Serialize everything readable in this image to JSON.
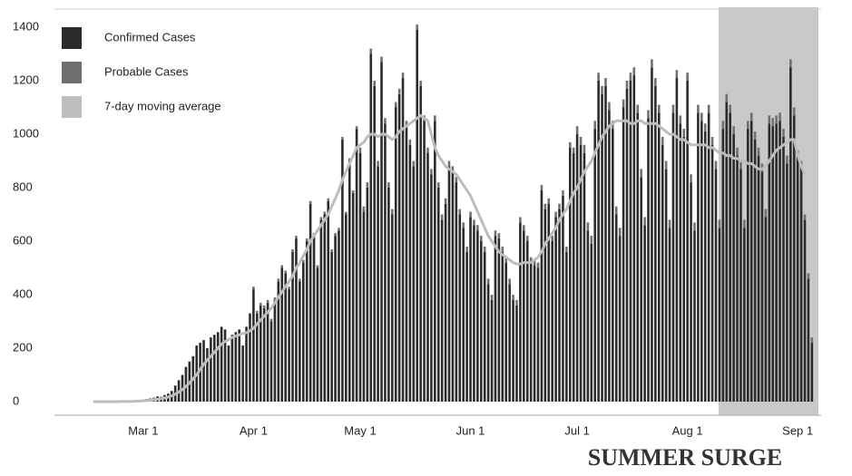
{
  "chart_data": {
    "type": "bar",
    "stacked": true,
    "annotation": "SUMMER SURGE",
    "ylim": [
      0,
      1400
    ],
    "yticks": [
      0,
      200,
      400,
      600,
      800,
      1000,
      1200,
      1400
    ],
    "grid": false,
    "legend": "upper left",
    "categories": [
      null,
      null,
      null,
      null,
      null,
      null,
      null,
      null,
      null,
      null,
      null,
      null,
      null,
      null,
      "Mar 1",
      null,
      null,
      null,
      null,
      null,
      null,
      null,
      null,
      null,
      null,
      null,
      null,
      null,
      null,
      null,
      null,
      null,
      null,
      null,
      null,
      null,
      null,
      null,
      null,
      null,
      null,
      null,
      null,
      null,
      null,
      "Apr 1",
      null,
      null,
      null,
      null,
      null,
      null,
      null,
      null,
      null,
      null,
      null,
      null,
      null,
      null,
      null,
      null,
      null,
      null,
      null,
      null,
      null,
      null,
      null,
      null,
      null,
      null,
      null,
      null,
      null,
      "May 1",
      null,
      null,
      null,
      null,
      null,
      null,
      null,
      null,
      null,
      null,
      null,
      null,
      null,
      null,
      null,
      null,
      null,
      null,
      null,
      null,
      null,
      null,
      null,
      null,
      null,
      null,
      null,
      null,
      null,
      null,
      "Jun 1",
      null,
      null,
      null,
      null,
      null,
      null,
      null,
      null,
      null,
      null,
      null,
      null,
      null,
      null,
      null,
      null,
      null,
      null,
      null,
      null,
      null,
      null,
      null,
      null,
      null,
      null,
      null,
      null,
      null,
      "Jul 1",
      null,
      null,
      null,
      null,
      null,
      null,
      null,
      null,
      null,
      null,
      null,
      null,
      null,
      null,
      null,
      null,
      null,
      null,
      null,
      null,
      null,
      null,
      null,
      null,
      null,
      null,
      null,
      null,
      null,
      null,
      "Aug 1",
      null,
      null,
      null,
      null,
      null,
      null,
      null,
      null,
      null,
      null,
      null,
      null,
      null,
      null,
      null,
      null,
      null,
      null,
      null,
      null,
      null,
      null,
      null,
      null,
      null,
      null,
      null,
      null,
      null,
      null,
      "Sep 1",
      null,
      null,
      null,
      null
    ],
    "series": [
      {
        "name": "Confirmed Cases",
        "color": "#2b2b2b",
        "values": [
          0,
          0,
          0,
          0,
          0,
          0,
          2,
          0,
          0,
          3,
          0,
          0,
          5,
          4,
          8,
          10,
          12,
          15,
          20,
          18,
          25,
          30,
          40,
          60,
          80,
          100,
          130,
          150,
          170,
          210,
          220,
          230,
          200,
          240,
          250,
          260,
          280,
          270,
          210,
          250,
          260,
          270,
          210,
          280,
          330,
          420,
          330,
          360,
          350,
          370,
          300,
          380,
          450,
          500,
          480,
          420,
          560,
          610,
          450,
          520,
          600,
          740,
          620,
          500,
          680,
          700,
          750,
          560,
          620,
          640,
          980,
          700,
          900,
          780,
          1020,
          930,
          710,
          800,
          1300,
          1180,
          880,
          1270,
          1040,
          800,
          700,
          1100,
          1150,
          1210,
          1030,
          960,
          880,
          1390,
          1180,
          1050,
          930,
          850,
          1050,
          800,
          680,
          740,
          880,
          860,
          820,
          700,
          650,
          560,
          690,
          660,
          640,
          600,
          560,
          440,
          380,
          620,
          610,
          560,
          520,
          440,
          380,
          360,
          670,
          640,
          600,
          520,
          510,
          500,
          790,
          720,
          740,
          600,
          690,
          720,
          770,
          560,
          950,
          930,
          1000,
          960,
          930,
          640,
          590,
          1020,
          1200,
          1150,
          1180,
          1090,
          1020,
          700,
          620,
          1100,
          1170,
          1200,
          1220,
          1080,
          840,
          660,
          1060,
          1250,
          1180,
          1080,
          960,
          870,
          650,
          1080,
          1210,
          1040,
          990,
          1200,
          820,
          640,
          1080,
          1050,
          1010,
          1080,
          960,
          870,
          650,
          1020,
          1120,
          1080,
          1000,
          920,
          870,
          650,
          1020,
          1050,
          980,
          920,
          860,
          690,
          1040,
          1030,
          1040,
          1050,
          990,
          890,
          1250,
          1070,
          920,
          880,
          680,
          460,
          220
        ]
      },
      {
        "name": "Probable Cases",
        "color": "#707070",
        "values": [
          0,
          0,
          0,
          0,
          0,
          0,
          0,
          0,
          0,
          0,
          0,
          0,
          0,
          0,
          0,
          0,
          0,
          0,
          0,
          0,
          0,
          0,
          0,
          0,
          0,
          0,
          0,
          0,
          0,
          0,
          0,
          0,
          0,
          0,
          0,
          0,
          0,
          0,
          0,
          0,
          0,
          0,
          0,
          0,
          0,
          10,
          10,
          10,
          10,
          10,
          10,
          10,
          10,
          10,
          10,
          10,
          10,
          10,
          10,
          10,
          10,
          10,
          10,
          10,
          10,
          10,
          10,
          10,
          10,
          10,
          10,
          10,
          10,
          10,
          10,
          20,
          20,
          20,
          20,
          20,
          20,
          20,
          20,
          20,
          20,
          20,
          20,
          20,
          20,
          20,
          20,
          20,
          20,
          20,
          20,
          20,
          20,
          20,
          20,
          20,
          20,
          20,
          20,
          20,
          20,
          20,
          20,
          20,
          20,
          20,
          20,
          20,
          20,
          20,
          20,
          20,
          20,
          20,
          20,
          20,
          20,
          20,
          20,
          20,
          20,
          20,
          20,
          20,
          20,
          20,
          20,
          20,
          20,
          20,
          20,
          20,
          30,
          30,
          30,
          30,
          30,
          30,
          30,
          30,
          30,
          30,
          30,
          30,
          30,
          30,
          30,
          30,
          30,
          30,
          30,
          30,
          30,
          30,
          30,
          30,
          30,
          30,
          30,
          30,
          30,
          30,
          30,
          30,
          30,
          30,
          30,
          30,
          30,
          30,
          30,
          30,
          30,
          30,
          30,
          30,
          30,
          30,
          30,
          30,
          30,
          30,
          30,
          30,
          30,
          30,
          30,
          30,
          30,
          30,
          30,
          30,
          30,
          30,
          20,
          20,
          20,
          20,
          20
        ]
      },
      {
        "name": "7-day moving average",
        "color": "#bdbdbd",
        "type": "line",
        "values": [
          0,
          0,
          0,
          0,
          0,
          0,
          0,
          0,
          1,
          1,
          1,
          1,
          2,
          2,
          3,
          4,
          5,
          7,
          9,
          11,
          14,
          17,
          22,
          28,
          36,
          45,
          57,
          70,
          85,
          100,
          120,
          140,
          155,
          170,
          185,
          200,
          215,
          225,
          232,
          240,
          245,
          250,
          255,
          258,
          265,
          275,
          290,
          305,
          320,
          335,
          350,
          370,
          390,
          410,
          430,
          450,
          470,
          500,
          520,
          545,
          570,
          600,
          620,
          640,
          660,
          680,
          700,
          730,
          760,
          790,
          830,
          860,
          890,
          920,
          950,
          960,
          970,
          990,
          1000,
          1000,
          990,
          1000,
          1000,
          990,
          980,
          990,
          1010,
          1020,
          1030,
          1040,
          1050,
          1060,
          1070,
          1060,
          1050,
          1000,
          950,
          920,
          900,
          880,
          870,
          860,
          850,
          830,
          810,
          790,
          770,
          740,
          710,
          680,
          650,
          620,
          600,
          580,
          560,
          550,
          540,
          530,
          520,
          515,
          515,
          520,
          520,
          520,
          530,
          540,
          560,
          590,
          610,
          630,
          650,
          680,
          700,
          720,
          750,
          780,
          800,
          830,
          860,
          880,
          900,
          930,
          960,
          990,
          1010,
          1030,
          1040,
          1050,
          1050,
          1050,
          1050,
          1040,
          1040,
          1050,
          1050,
          1040,
          1040,
          1040,
          1040,
          1030,
          1020,
          1010,
          1000,
          1000,
          990,
          980,
          980,
          970,
          960,
          960,
          960,
          960,
          960,
          950,
          950,
          940,
          930,
          930,
          920,
          920,
          910,
          910,
          900,
          900,
          890,
          890,
          880,
          870,
          870,
          880,
          900,
          920,
          940,
          950,
          960,
          970,
          980,
          980,
          920,
          880,
          850,
          null,
          null
        ]
      }
    ]
  }
}
